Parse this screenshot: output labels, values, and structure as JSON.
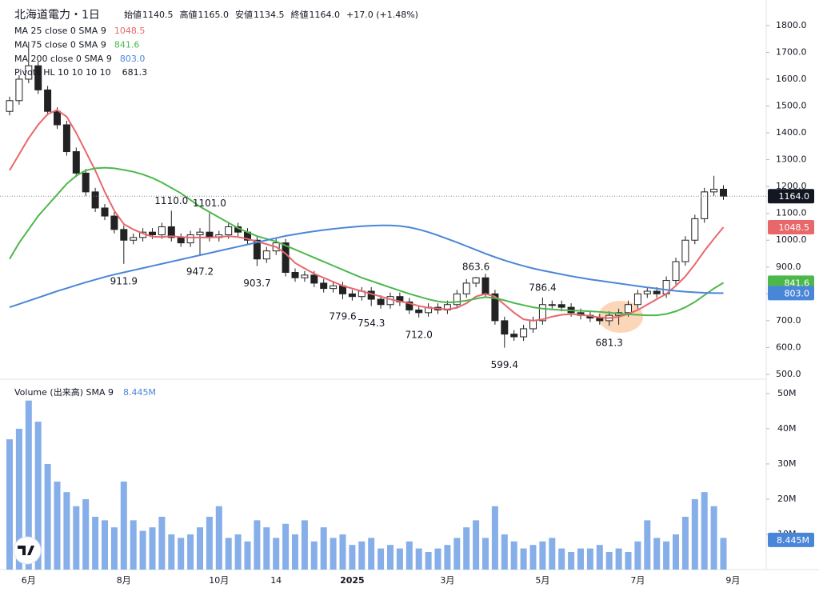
{
  "header": {
    "title": "北海道電力・1日",
    "ohlc": [
      [
        "始値",
        "1140.5"
      ],
      [
        "高値",
        "1165.0"
      ],
      [
        "安値",
        "1134.5"
      ],
      [
        "終値",
        "1164.0"
      ]
    ],
    "change": "+17.0 (+1.48%)"
  },
  "chart_data": [
    {
      "type": "candlestick",
      "categories": [
        null,
        null,
        "6月",
        null,
        null,
        null,
        null,
        null,
        null,
        null,
        null,
        null,
        "8月",
        null,
        null,
        null,
        null,
        null,
        null,
        null,
        null,
        null,
        "10月",
        null,
        null,
        null,
        null,
        null,
        "14",
        null,
        null,
        null,
        null,
        null,
        null,
        null,
        "2025",
        null,
        null,
        null,
        null,
        null,
        null,
        null,
        null,
        null,
        "3月",
        null,
        null,
        null,
        null,
        null,
        null,
        null,
        null,
        null,
        "5月",
        null,
        null,
        null,
        null,
        null,
        null,
        null,
        null,
        null,
        "7月",
        null,
        null,
        null,
        null,
        null,
        null,
        null,
        null,
        null,
        "9月"
      ],
      "open": [
        1480,
        1520,
        1600,
        1650,
        1560,
        1480,
        1430,
        1330,
        1250,
        1180,
        1120,
        1090,
        1040,
        1000,
        1010,
        1030,
        1020,
        1050,
        1010,
        990,
        1020,
        1030,
        1010,
        1020,
        1050,
        1030,
        1000,
        930,
        960,
        990,
        880,
        860,
        870,
        840,
        820,
        830,
        800,
        790,
        810,
        780,
        760,
        790,
        770,
        740,
        730,
        750,
        740,
        760,
        800,
        840,
        860,
        800,
        700,
        650,
        640,
        670,
        700,
        760,
        760,
        750,
        730,
        720,
        710,
        700,
        720,
        730,
        760,
        800,
        810,
        800,
        850,
        920,
        1000,
        1080,
        1180,
        1190,
        null
      ],
      "high": [
        1535,
        1615,
        1740,
        1665,
        1575,
        1495,
        1445,
        1345,
        1265,
        1195,
        1135,
        1105,
        1055,
        1025,
        1045,
        1045,
        1065,
        1110,
        1025,
        1035,
        1045,
        1101,
        1035,
        1065,
        1065,
        1045,
        1015,
        975,
        1005,
        1005,
        895,
        885,
        885,
        855,
        845,
        845,
        815,
        825,
        825,
        795,
        805,
        805,
        785,
        755,
        765,
        765,
        775,
        815,
        855,
        863.6,
        875,
        815,
        715,
        665,
        685,
        715,
        786.4,
        775,
        775,
        765,
        745,
        735,
        725,
        735,
        745,
        775,
        815,
        825,
        825,
        865,
        935,
        1015,
        1095,
        1195,
        1240,
        1205,
        null
      ],
      "low": [
        1465,
        1505,
        1585,
        1545,
        1465,
        1415,
        1315,
        1235,
        1165,
        1105,
        1075,
        1025,
        911.9,
        985,
        995,
        1005,
        1005,
        995,
        975,
        975,
        947.2,
        995,
        995,
        1005,
        1015,
        985,
        903.7,
        915,
        945,
        865,
        845,
        845,
        825,
        805,
        805,
        779.6,
        775,
        775,
        754.3,
        745,
        745,
        755,
        725,
        712,
        715,
        725,
        725,
        745,
        785,
        825,
        785,
        685,
        599.4,
        625,
        625,
        655,
        685,
        745,
        735,
        715,
        705,
        695,
        685,
        681.3,
        685,
        715,
        745,
        785,
        785,
        785,
        835,
        905,
        985,
        1065,
        1165,
        1150,
        null
      ],
      "close": [
        1520,
        1600,
        1650,
        1560,
        1480,
        1430,
        1330,
        1250,
        1180,
        1120,
        1090,
        1040,
        1000,
        1010,
        1030,
        1020,
        1050,
        1010,
        990,
        1020,
        1030,
        1010,
        1020,
        1050,
        1030,
        1000,
        930,
        960,
        990,
        880,
        860,
        870,
        840,
        820,
        830,
        800,
        790,
        810,
        780,
        760,
        790,
        770,
        740,
        730,
        750,
        740,
        760,
        800,
        840,
        860,
        800,
        700,
        650,
        640,
        670,
        700,
        760,
        760,
        750,
        730,
        720,
        710,
        700,
        720,
        730,
        760,
        800,
        810,
        800,
        850,
        920,
        1000,
        1080,
        1180,
        1190,
        1164,
        null
      ],
      "up_color": "#ffffff",
      "down_color": "#222222",
      "last": {
        "value": 1164.0,
        "label": "1164.0"
      },
      "series": [
        {
          "name": "MA 25 close 0 SMA 9",
          "color": "#e8676b",
          "last_label": "1048.5",
          "values": [
            1260,
            1320,
            1380,
            1430,
            1470,
            1485,
            1460,
            1400,
            1330,
            1260,
            1180,
            1110,
            1060,
            1040,
            1025,
            1013,
            1012,
            1015,
            1012,
            1010,
            1010,
            1010,
            1012,
            1015,
            1012,
            1005,
            995,
            985,
            975,
            950,
            915,
            895,
            875,
            860,
            845,
            830,
            820,
            810,
            800,
            790,
            780,
            772,
            765,
            755,
            748,
            745,
            742,
            748,
            765,
            790,
            800,
            790,
            760,
            730,
            705,
            700,
            705,
            715,
            722,
            725,
            722,
            718,
            712,
            710,
            715,
            725,
            740,
            760,
            780,
            800,
            830,
            865,
            910,
            960,
            1005,
            1048.5,
            null
          ]
        },
        {
          "name": "MA 75 close 0 SMA 9",
          "color": "#4cb84c",
          "last_label": "841.6",
          "values": [
            930,
            990,
            1040,
            1090,
            1130,
            1170,
            1210,
            1240,
            1260,
            1268,
            1270,
            1268,
            1262,
            1255,
            1245,
            1232,
            1215,
            1195,
            1175,
            1150,
            1125,
            1105,
            1085,
            1065,
            1045,
            1030,
            1015,
            1005,
            995,
            980,
            965,
            950,
            935,
            920,
            905,
            890,
            875,
            860,
            848,
            836,
            824,
            812,
            800,
            790,
            780,
            772,
            768,
            770,
            775,
            782,
            788,
            784,
            776,
            766,
            758,
            750,
            745,
            742,
            740,
            738,
            737,
            735,
            733,
            730,
            727,
            724,
            722,
            720,
            720,
            725,
            735,
            750,
            770,
            795,
            820,
            841.6,
            null
          ]
        },
        {
          "name": "MA 200 close 0 SMA 9",
          "color": "#4a86d8",
          "last_label": "803.0",
          "values": [
            750,
            762,
            774,
            786,
            798,
            810,
            821,
            832,
            843,
            853,
            863,
            872,
            880,
            888,
            896,
            904,
            912,
            920,
            928,
            936,
            944,
            952,
            960,
            968,
            976,
            984,
            992,
            1000,
            1008,
            1016,
            1022,
            1028,
            1033,
            1038,
            1042,
            1046,
            1049,
            1052,
            1054,
            1055,
            1055,
            1053,
            1048,
            1040,
            1030,
            1018,
            1005,
            992,
            978,
            964,
            950,
            937,
            925,
            914,
            904,
            895,
            887,
            880,
            873,
            866,
            860,
            854,
            849,
            844,
            839,
            834,
            829,
            824,
            820,
            815,
            811,
            808,
            806,
            804,
            803,
            803.0,
            null
          ]
        }
      ],
      "pivots": {
        "name": "Pivots HL 10 10 10 10",
        "last_label": "681.3",
        "values": [
          null,
          null,
          null,
          null,
          null,
          null,
          null,
          null,
          null,
          null,
          null,
          null,
          911.9,
          null,
          null,
          null,
          null,
          1110.0,
          null,
          null,
          947.2,
          1101.0,
          null,
          null,
          null,
          null,
          903.7,
          null,
          null,
          null,
          null,
          null,
          null,
          null,
          null,
          779.6,
          null,
          null,
          754.3,
          null,
          null,
          null,
          null,
          712.0,
          null,
          null,
          null,
          null,
          null,
          863.6,
          null,
          null,
          599.4,
          null,
          null,
          null,
          786.4,
          null,
          null,
          null,
          null,
          null,
          null,
          681.3,
          null,
          null,
          null,
          null,
          null,
          null,
          null,
          null,
          null,
          null,
          null,
          null,
          null
        ],
        "value_labels": [
          null,
          null,
          null,
          null,
          null,
          null,
          null,
          null,
          null,
          null,
          null,
          null,
          "911.9",
          null,
          null,
          null,
          null,
          "1110.0",
          null,
          null,
          "947.2",
          "1101.0",
          null,
          null,
          null,
          null,
          "903.7",
          null,
          null,
          null,
          null,
          null,
          null,
          null,
          null,
          "779.6",
          null,
          null,
          "754.3",
          null,
          null,
          null,
          null,
          "712.0",
          null,
          null,
          null,
          null,
          null,
          "863.6",
          null,
          null,
          "599.4",
          null,
          null,
          null,
          "786.4",
          null,
          null,
          null,
          null,
          null,
          null,
          "681.3",
          null,
          null,
          null,
          null,
          null,
          null,
          null,
          null,
          null,
          null,
          null,
          null,
          null
        ]
      },
      "ylim": [
        488,
        1895
      ],
      "yticks": [
        {
          "value": 500,
          "label": "500.0"
        },
        {
          "value": 600,
          "label": "600.0"
        },
        {
          "value": 700,
          "label": "700.0"
        },
        {
          "value": 800,
          "label": "800.0"
        },
        {
          "value": 900,
          "label": "900.0"
        },
        {
          "value": 1000,
          "label": "1000.0"
        },
        {
          "value": 1100,
          "label": "1100.0"
        },
        {
          "value": 1200,
          "label": "1200.0"
        },
        {
          "value": 1300,
          "label": "1300.0"
        },
        {
          "value": 1400,
          "label": "1400.0"
        },
        {
          "value": 1500,
          "label": "1500.0"
        },
        {
          "value": 1600,
          "label": "1600.0"
        },
        {
          "value": 1700,
          "label": "1700.0"
        },
        {
          "value": 1800,
          "label": "1800.0"
        }
      ]
    },
    {
      "type": "bar",
      "name": "Volume (出来高) SMA 9",
      "color": "#86aee8",
      "sma_last": {
        "value": 8.445,
        "label": "8.445M"
      },
      "values": [
        37,
        40,
        48,
        42,
        30,
        25,
        22,
        18,
        20,
        15,
        14,
        12,
        25,
        14,
        11,
        12,
        15,
        10,
        9,
        10,
        12,
        15,
        18,
        9,
        10,
        8,
        14,
        12,
        9,
        13,
        10,
        14,
        8,
        12,
        9,
        10,
        7,
        8,
        9,
        6,
        7,
        6,
        8,
        6,
        5,
        6,
        7,
        9,
        12,
        14,
        9,
        18,
        10,
        8,
        6,
        7,
        8,
        9,
        6,
        5,
        6,
        6,
        7,
        5,
        6,
        5,
        8,
        14,
        9,
        8,
        10,
        15,
        20,
        22,
        18,
        9,
        null
      ],
      "ylim": [
        0,
        52.7
      ],
      "yticks": [
        {
          "value": 10,
          "label": "10M"
        },
        {
          "value": 20,
          "label": "20M"
        },
        {
          "value": 30,
          "label": "30M"
        },
        {
          "value": 40,
          "label": "40M"
        },
        {
          "value": 50,
          "label": "50M"
        }
      ]
    }
  ]
}
